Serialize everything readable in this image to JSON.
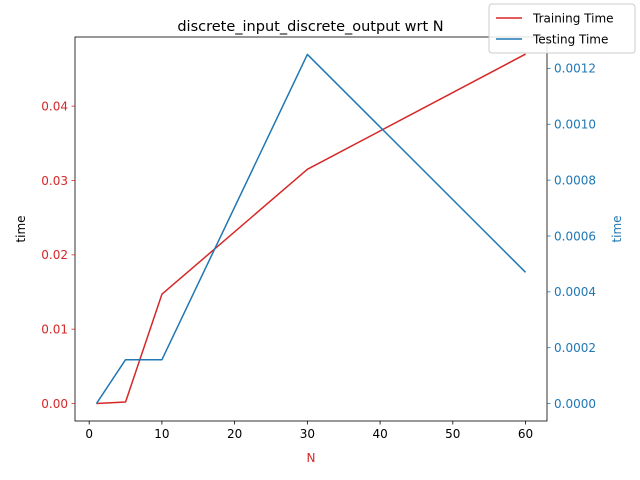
{
  "chart_data": {
    "type": "line",
    "title": "discrete_input_discrete_output wrt N",
    "xlabel": "N",
    "ylabel_left": "time",
    "ylabel_right": "time",
    "x": [
      1,
      5,
      10,
      30,
      60
    ],
    "xticks": [
      0,
      10,
      20,
      30,
      40,
      50,
      60
    ],
    "xlim": [
      -1.95,
      62.95
    ],
    "series": [
      {
        "name": "Training Time",
        "axis": "left",
        "color": "#d62728",
        "values": [
          0.0,
          0.0002,
          0.0147,
          0.0315,
          0.047
        ]
      },
      {
        "name": "Testing Time",
        "axis": "right",
        "color": "#1f77b4",
        "values": [
          0.0,
          0.000157,
          0.000157,
          0.00125,
          0.00047
        ]
      }
    ],
    "ylim_left": [
      -0.00235,
      0.0493
    ],
    "yticks_left": [
      "0.00",
      "0.01",
      "0.02",
      "0.03",
      "0.04"
    ],
    "ylim_right": [
      -6.25e-05,
      0.0013125
    ],
    "yticks_right": [
      "0.0000",
      "0.0002",
      "0.0004",
      "0.0006",
      "0.0008",
      "0.0010",
      "0.0012"
    ],
    "left_axis_color": "#d62728",
    "right_axis_color": "#1f77b4",
    "grid": false,
    "legend_position": "top-right"
  }
}
